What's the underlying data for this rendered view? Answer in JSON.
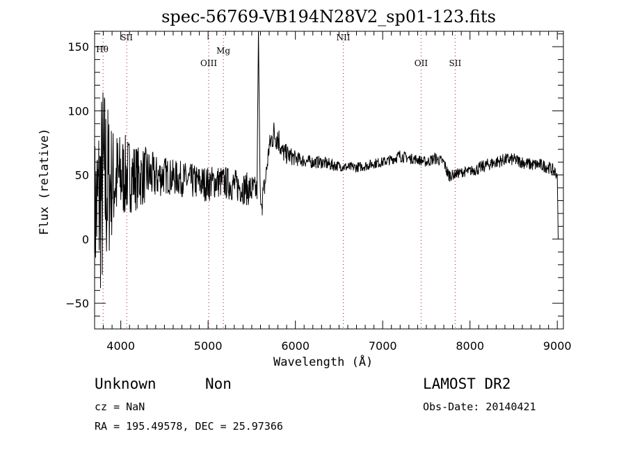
{
  "chart_data": {
    "type": "line",
    "title": "spec-56769-VB194N28V2_sp01-123.fits",
    "xlabel": "Wavelength (Å)",
    "ylabel": "Flux (relative)",
    "xlim": [
      3700,
      9070
    ],
    "ylim": [
      -70,
      162
    ],
    "xticks": [
      4000,
      5000,
      6000,
      7000,
      8000,
      9000
    ],
    "xtick_labels": [
      "4000",
      "5000",
      "6000",
      "7000",
      "8000",
      "9000"
    ],
    "yticks": [
      -50,
      0,
      50,
      100,
      150
    ],
    "ytick_labels": [
      "−50",
      "0",
      "50",
      "100",
      "150"
    ],
    "grid": false,
    "series": [
      {
        "name": "flux",
        "note": "approximate continuum envelope (wavelength, flux, noise amplitude)",
        "points": [
          [
            3700,
            20,
            60
          ],
          [
            3800,
            40,
            90
          ],
          [
            3900,
            45,
            45
          ],
          [
            4000,
            48,
            35
          ],
          [
            4100,
            50,
            30
          ],
          [
            4200,
            48,
            25
          ],
          [
            4300,
            50,
            22
          ],
          [
            4400,
            48,
            18
          ],
          [
            4500,
            50,
            15
          ],
          [
            4600,
            48,
            14
          ],
          [
            4700,
            47,
            14
          ],
          [
            4800,
            45,
            14
          ],
          [
            4900,
            44,
            14
          ],
          [
            5000,
            43,
            14
          ],
          [
            5100,
            45,
            13
          ],
          [
            5200,
            44,
            13
          ],
          [
            5300,
            42,
            13
          ],
          [
            5400,
            40,
            13
          ],
          [
            5500,
            38,
            13
          ],
          [
            5560,
            38,
            10
          ],
          [
            5577,
            165,
            0
          ],
          [
            5595,
            40,
            10
          ],
          [
            5620,
            30,
            12
          ],
          [
            5650,
            42,
            10
          ],
          [
            5700,
            72,
            8
          ],
          [
            5750,
            82,
            12
          ],
          [
            5800,
            80,
            12
          ],
          [
            5850,
            68,
            8
          ],
          [
            5900,
            66,
            8
          ],
          [
            6000,
            63,
            6
          ],
          [
            6100,
            61,
            5
          ],
          [
            6200,
            60,
            5
          ],
          [
            6300,
            60,
            5
          ],
          [
            6400,
            58,
            5
          ],
          [
            6500,
            57,
            4
          ],
          [
            6600,
            56,
            4
          ],
          [
            6700,
            56,
            4
          ],
          [
            6800,
            57,
            4
          ],
          [
            6900,
            59,
            4
          ],
          [
            7000,
            60,
            4
          ],
          [
            7100,
            62,
            4
          ],
          [
            7200,
            65,
            5
          ],
          [
            7300,
            63,
            4
          ],
          [
            7400,
            62,
            4
          ],
          [
            7500,
            60,
            4
          ],
          [
            7600,
            63,
            5
          ],
          [
            7700,
            60,
            4
          ],
          [
            7750,
            50,
            6
          ],
          [
            7800,
            50,
            4
          ],
          [
            7900,
            52,
            4
          ],
          [
            8000,
            53,
            4
          ],
          [
            8100,
            55,
            5
          ],
          [
            8200,
            58,
            5
          ],
          [
            8300,
            60,
            5
          ],
          [
            8400,
            62,
            5
          ],
          [
            8500,
            62,
            5
          ],
          [
            8600,
            60,
            5
          ],
          [
            8700,
            58,
            5
          ],
          [
            8800,
            58,
            5
          ],
          [
            8900,
            56,
            5
          ],
          [
            8980,
            52,
            5
          ],
          [
            9000,
            50,
            3
          ],
          [
            9010,
            0,
            0
          ]
        ]
      }
    ],
    "line_marks": [
      {
        "label": "Hθ",
        "x": 3797
      },
      {
        "label": "SII",
        "x": 4068
      },
      {
        "label": "OIII",
        "x": 5007
      },
      {
        "label": "Mg",
        "x": 5175
      },
      {
        "label": "NII",
        "x": 6548
      },
      {
        "label": "OII",
        "x": 7440
      },
      {
        "label": "SII",
        "x": 7830
      }
    ]
  },
  "info": {
    "class": "Unknown",
    "subclass": "Non",
    "cz": "cz = NaN",
    "coords": "RA = 195.49578, DEC =  25.97366",
    "survey": "LAMOST DR2",
    "obs_date": "Obs-Date: 20140421"
  },
  "colors": {
    "line_marks": "#8b1a1a",
    "spectrum": "#000000"
  }
}
